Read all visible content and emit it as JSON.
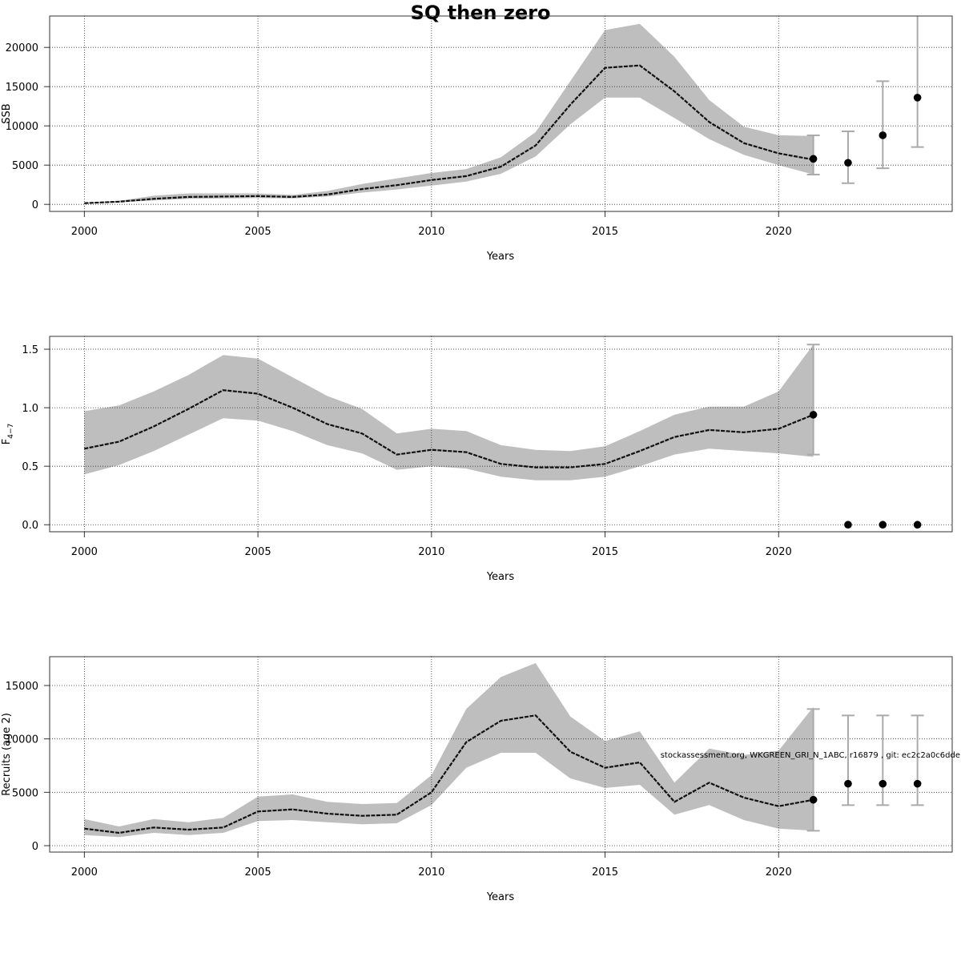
{
  "figure": {
    "title": "SQ then zero",
    "note": "stockassessment.org, WKGREEN_GRI_N_1ABC, r16879 , git: ec2c2a0c6dde"
  },
  "chart_data": [
    {
      "type": "area",
      "id": "ssb",
      "xlabel": "Years",
      "ylabel": "SSB",
      "xlim": [
        1999,
        2025
      ],
      "ylim": [
        -900,
        24000
      ],
      "x_ticks": [
        2000,
        2005,
        2010,
        2015,
        2020
      ],
      "y_ticks": [
        0,
        5000,
        10000,
        15000,
        20000
      ],
      "grid": true,
      "x": [
        2000,
        2001,
        2002,
        2003,
        2004,
        2005,
        2006,
        2007,
        2008,
        2009,
        2010,
        2011,
        2012,
        2013,
        2014,
        2015,
        2016,
        2017,
        2018,
        2019,
        2020,
        2021
      ],
      "estimate": [
        150,
        350,
        700,
        950,
        1000,
        1050,
        950,
        1250,
        1950,
        2450,
        3100,
        3600,
        4800,
        7500,
        12700,
        17400,
        17700,
        14400,
        10500,
        7800,
        6500,
        5700
      ],
      "lower": [
        100,
        250,
        500,
        700,
        750,
        800,
        750,
        1000,
        1500,
        1900,
        2400,
        2900,
        3900,
        6100,
        10200,
        13600,
        13600,
        11000,
        8300,
        6300,
        5000,
        3800
      ],
      "upper": [
        200,
        450,
        1100,
        1400,
        1400,
        1400,
        1200,
        1700,
        2600,
        3300,
        4000,
        4500,
        6000,
        9200,
        15700,
        22200,
        23000,
        18800,
        13300,
        9900,
        8800,
        8700
      ],
      "forecast": {
        "x": [
          2021,
          2022,
          2023,
          2024
        ],
        "median": [
          5800,
          5300,
          8800,
          13600
        ],
        "lower": [
          3800,
          2700,
          4600,
          7300
        ],
        "upper": [
          8800,
          9300,
          15700,
          24500
        ]
      }
    },
    {
      "type": "area",
      "id": "fbar",
      "xlabel": "Years",
      "ylabel": "F4−7",
      "ylabel_main": "F",
      "ylabel_sub": "4−7",
      "xlim": [
        1999,
        2025
      ],
      "ylim": [
        -0.06,
        1.61
      ],
      "x_ticks": [
        2000,
        2005,
        2010,
        2015,
        2020
      ],
      "y_ticks": [
        0.0,
        0.5,
        1.0,
        1.5
      ],
      "y_tick_labels": [
        "0.0",
        "0.5",
        "1.0",
        "1.5"
      ],
      "grid": true,
      "x": [
        2000,
        2001,
        2002,
        2003,
        2004,
        2005,
        2006,
        2007,
        2008,
        2009,
        2010,
        2011,
        2012,
        2013,
        2014,
        2015,
        2016,
        2017,
        2018,
        2019,
        2020,
        2021
      ],
      "estimate": [
        0.65,
        0.71,
        0.84,
        0.99,
        1.15,
        1.12,
        1.0,
        0.86,
        0.78,
        0.6,
        0.64,
        0.62,
        0.52,
        0.49,
        0.49,
        0.52,
        0.63,
        0.75,
        0.81,
        0.79,
        0.82,
        0.94
      ],
      "lower": [
        0.43,
        0.51,
        0.63,
        0.77,
        0.91,
        0.89,
        0.8,
        0.68,
        0.61,
        0.47,
        0.5,
        0.48,
        0.41,
        0.38,
        0.38,
        0.41,
        0.5,
        0.6,
        0.65,
        0.63,
        0.61,
        0.58
      ],
      "upper": [
        0.97,
        1.02,
        1.14,
        1.28,
        1.45,
        1.42,
        1.26,
        1.1,
        0.99,
        0.78,
        0.82,
        0.8,
        0.68,
        0.64,
        0.63,
        0.67,
        0.8,
        0.94,
        1.01,
        1.01,
        1.14,
        1.54
      ],
      "forecast": {
        "x": [
          2021,
          2022,
          2023,
          2024
        ],
        "median": [
          0.94,
          0.0,
          0.0,
          0.0
        ],
        "lower": [
          0.6,
          null,
          null,
          null
        ],
        "upper": [
          1.54,
          null,
          null,
          null
        ]
      }
    },
    {
      "type": "area",
      "id": "recruits",
      "xlabel": "Years",
      "ylabel": "Recruits (age 2)",
      "xlim": [
        1999,
        2025
      ],
      "ylim": [
        -600,
        17700
      ],
      "x_ticks": [
        2000,
        2005,
        2010,
        2015,
        2020
      ],
      "y_ticks": [
        0,
        5000,
        10000,
        15000
      ],
      "grid": true,
      "x": [
        2000,
        2001,
        2002,
        2003,
        2004,
        2005,
        2006,
        2007,
        2008,
        2009,
        2010,
        2011,
        2012,
        2013,
        2014,
        2015,
        2016,
        2017,
        2018,
        2019,
        2020,
        2021
      ],
      "estimate": [
        1600,
        1200,
        1700,
        1500,
        1700,
        3200,
        3400,
        3000,
        2800,
        2900,
        5000,
        9700,
        11700,
        12200,
        8800,
        7300,
        7800,
        4100,
        5900,
        4500,
        3700,
        4300
      ],
      "lower": [
        1000,
        800,
        1200,
        1000,
        1200,
        2300,
        2400,
        2200,
        2000,
        2100,
        3800,
        7300,
        8700,
        8700,
        6300,
        5400,
        5700,
        2900,
        3800,
        2400,
        1600,
        1400
      ],
      "upper": [
        2500,
        1800,
        2500,
        2200,
        2600,
        4600,
        4800,
        4100,
        3900,
        4000,
        6600,
        12800,
        15800,
        17100,
        12100,
        9800,
        10700,
        5900,
        9100,
        8500,
        8900,
        13000
      ],
      "forecast": {
        "x": [
          2021,
          2022,
          2023,
          2024
        ],
        "median": [
          4300,
          5800,
          5800,
          5800
        ],
        "lower": [
          1400,
          3800,
          3800,
          3800
        ],
        "upper": [
          12800,
          12200,
          12200,
          12200
        ]
      }
    }
  ]
}
